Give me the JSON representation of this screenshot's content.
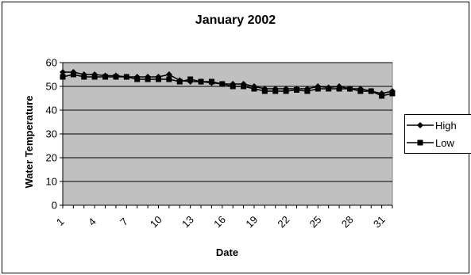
{
  "chart_data": {
    "type": "line",
    "title": "January 2002",
    "xlabel": "Date",
    "ylabel": "Water Temperature",
    "x": [
      1,
      2,
      3,
      4,
      5,
      6,
      7,
      8,
      9,
      10,
      11,
      12,
      13,
      14,
      15,
      16,
      17,
      18,
      19,
      20,
      21,
      22,
      23,
      24,
      25,
      26,
      27,
      28,
      29,
      30,
      31,
      32
    ],
    "x_ticks": [
      1,
      4,
      7,
      10,
      13,
      16,
      19,
      22,
      25,
      28,
      31
    ],
    "y_ticks": [
      0,
      10,
      20,
      30,
      40,
      50,
      60
    ],
    "ylim": [
      0,
      60
    ],
    "grid": true,
    "legend_position": "right",
    "series": [
      {
        "name": "High",
        "marker": "diamond",
        "values": [
          56,
          56,
          55,
          55,
          54.5,
          54.5,
          54,
          54,
          54,
          54,
          55,
          52.5,
          52,
          52,
          51.5,
          51,
          51,
          51,
          50,
          49,
          49,
          49,
          49,
          49,
          50,
          49.5,
          50,
          49,
          49,
          48,
          47,
          48
        ]
      },
      {
        "name": "Low",
        "marker": "square",
        "values": [
          54,
          55,
          54,
          54,
          54,
          54,
          54,
          53,
          53,
          53,
          53,
          52,
          53,
          52,
          52,
          51,
          50,
          50,
          49,
          48,
          48,
          48,
          48.5,
          48,
          49,
          49,
          49,
          49,
          48,
          48,
          46,
          47
        ]
      }
    ],
    "colors": {
      "plot_bg": "#c0c0c0",
      "line": "#000000",
      "grid": "#000000"
    }
  }
}
